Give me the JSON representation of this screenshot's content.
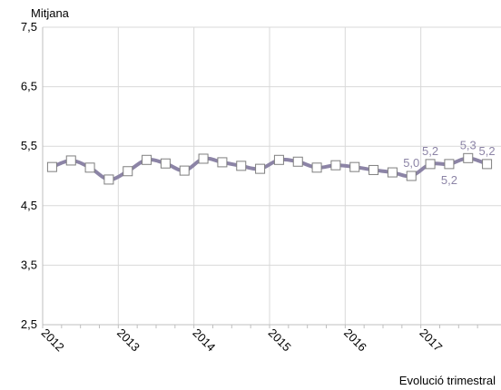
{
  "chart_data": {
    "type": "line",
    "y_axis_label": "Mitjana",
    "x_axis_label": "Evolució trimestral",
    "categories": [
      "2012",
      null,
      null,
      null,
      "2013",
      null,
      null,
      null,
      "2014",
      null,
      null,
      null,
      "2015",
      null,
      null,
      null,
      "2016",
      null,
      null,
      null,
      "2017",
      null,
      null,
      null
    ],
    "series": [
      {
        "name": "Mitjana",
        "color": "#8c84a6",
        "values": [
          5.15,
          5.26,
          5.14,
          4.94,
          5.08,
          5.27,
          5.21,
          5.09,
          5.29,
          5.23,
          5.17,
          5.12,
          5.27,
          5.24,
          5.14,
          5.18,
          5.15,
          5.1,
          5.06,
          5.0,
          5.2,
          5.2,
          5.3,
          5.2
        ],
        "value_labels": [
          null,
          null,
          null,
          null,
          null,
          null,
          null,
          null,
          null,
          null,
          null,
          null,
          null,
          null,
          null,
          null,
          null,
          null,
          null,
          "5,0",
          "5,2",
          "5,2",
          "5,3",
          "5,2"
        ]
      }
    ],
    "ylim": [
      2.5,
      7.5
    ],
    "yticks": [
      {
        "value": 2.5,
        "label": "2,5"
      },
      {
        "value": 3.5,
        "label": "3,5"
      },
      {
        "value": 4.5,
        "label": "4,5"
      },
      {
        "value": 5.5,
        "label": "5,5"
      },
      {
        "value": 6.5,
        "label": "6,5"
      },
      {
        "value": 7.5,
        "label": "7,5"
      }
    ],
    "grid": true
  }
}
